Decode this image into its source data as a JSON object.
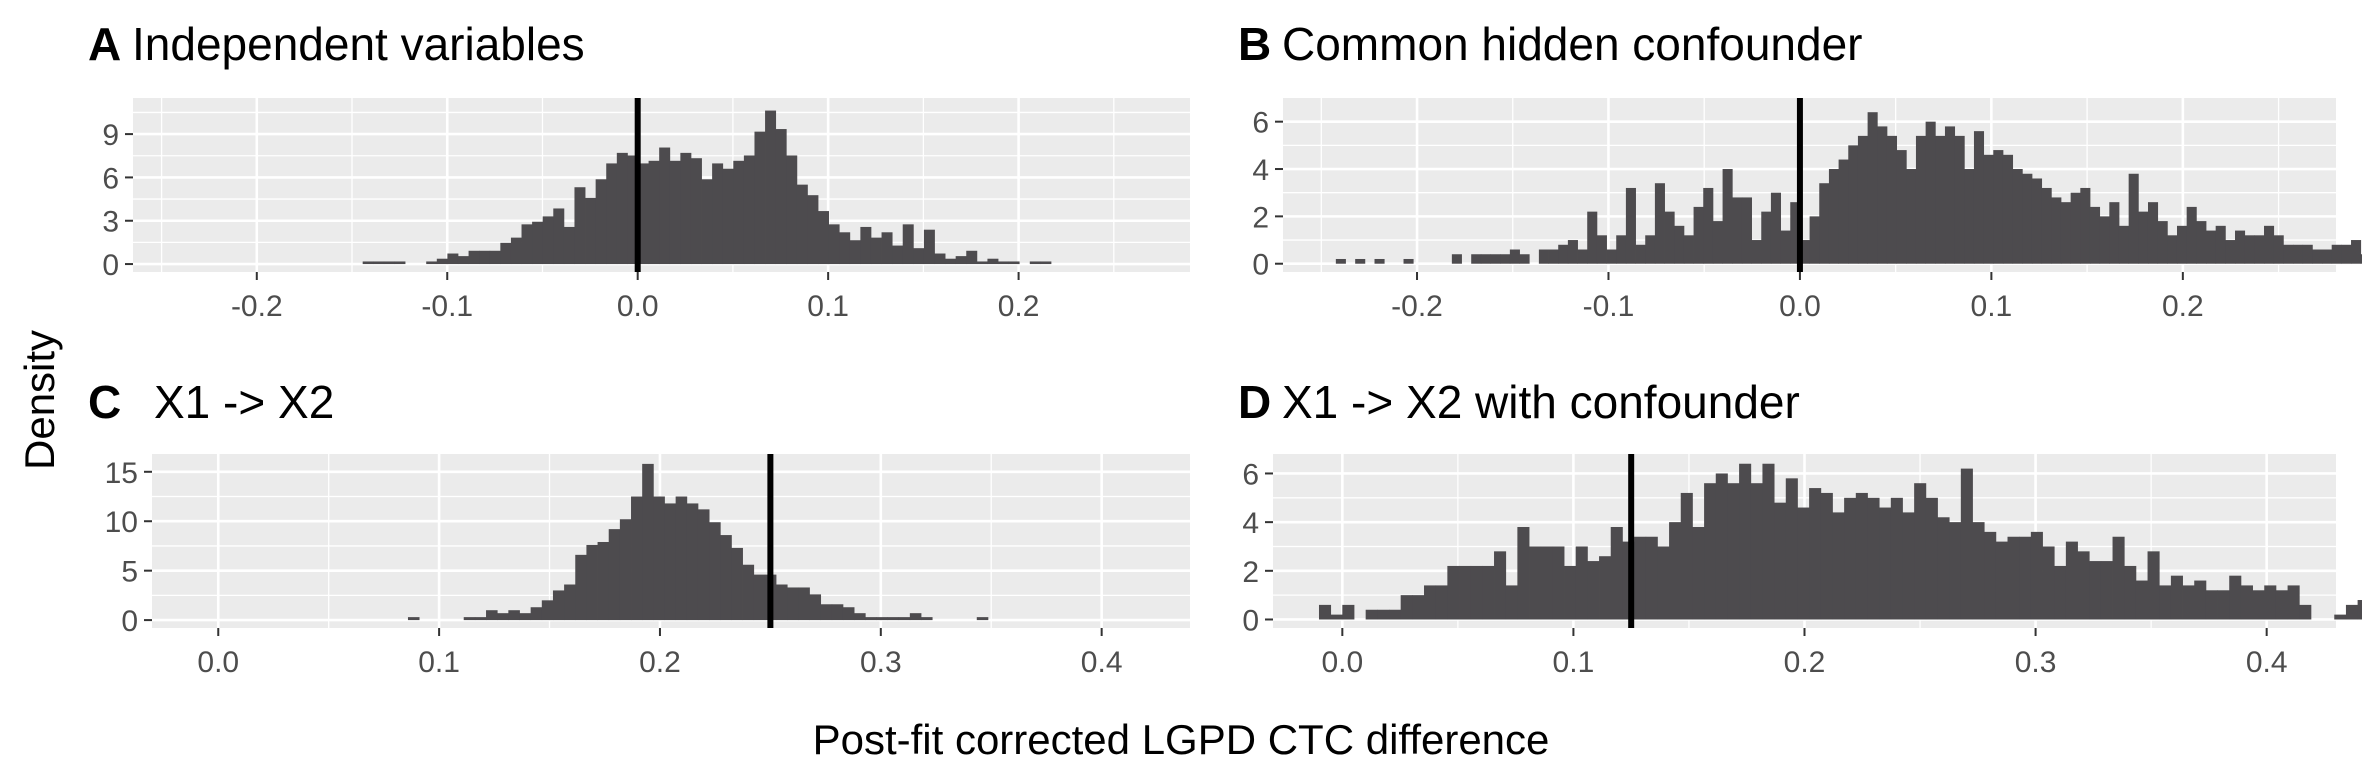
{
  "figure": {
    "ylabel": "Density",
    "xlabel": "Post-fit corrected LGPD CTC difference"
  },
  "chart_data": [
    {
      "type": "bar",
      "panel_letter": "A",
      "title": "Independent variables",
      "xlim": [
        -0.265,
        0.29
      ],
      "ylim": [
        -0.55,
        11.5
      ],
      "x_ticks": [
        -0.2,
        -0.1,
        0.0,
        0.1,
        0.2
      ],
      "x_tick_labels": [
        "-0.2",
        "-0.1",
        "0.0",
        "0.1",
        "0.2"
      ],
      "y_ticks": [
        0,
        3,
        6,
        9
      ],
      "y_tick_labels": [
        "0",
        "3",
        "6",
        "9"
      ],
      "bin_width": 0.00556,
      "bin_start": -0.1444,
      "values": [
        0.18,
        0.18,
        0.18,
        0.18,
        0,
        0,
        0.18,
        0.37,
        0.73,
        0.55,
        0.92,
        0.92,
        0.92,
        1.47,
        1.83,
        2.75,
        2.93,
        3.3,
        3.85,
        2.57,
        5.32,
        4.58,
        5.87,
        6.97,
        7.7,
        7.52,
        6.97,
        7.15,
        8.07,
        7.15,
        7.7,
        7.33,
        5.87,
        6.97,
        6.6,
        7.15,
        7.52,
        9.17,
        10.63,
        9.35,
        7.52,
        5.5,
        4.77,
        3.67,
        2.75,
        2.2,
        1.65,
        2.57,
        1.83,
        2.2,
        1.28,
        2.75,
        1.1,
        2.38,
        0.73,
        0.37,
        0.55,
        0.92,
        0.18,
        0.37,
        0.18,
        0.18,
        0,
        0.18,
        0.18
      ],
      "vline": 0.0,
      "grid": true
    },
    {
      "type": "bar",
      "panel_letter": "B",
      "title": "Common hidden confounder",
      "xlim": [
        -0.27,
        0.28
      ],
      "ylim": [
        -0.35,
        7.0
      ],
      "x_ticks": [
        -0.2,
        -0.1,
        0.0,
        0.1,
        0.2
      ],
      "x_tick_labels": [
        "-0.2",
        "-0.1",
        "0.0",
        "0.1",
        "0.2"
      ],
      "y_ticks": [
        0,
        2,
        4,
        6
      ],
      "y_tick_labels": [
        "0",
        "2",
        "4",
        "6"
      ],
      "bin_width": 0.00505,
      "bin_start": -0.2424,
      "values": [
        0.2,
        0,
        0.2,
        0,
        0.2,
        0,
        0,
        0.2,
        0,
        0,
        0,
        0,
        0.4,
        0,
        0.4,
        0.4,
        0.4,
        0.4,
        0.6,
        0.4,
        0,
        0.6,
        0.6,
        0.8,
        1.0,
        0.6,
        2.2,
        1.2,
        0.6,
        1.2,
        3.2,
        0.8,
        1.2,
        3.4,
        2.2,
        1.6,
        1.2,
        2.4,
        3.2,
        1.8,
        4.0,
        2.8,
        2.8,
        1.0,
        2.2,
        3.0,
        1.4,
        2.6,
        1.0,
        2.0,
        3.4,
        4.0,
        4.4,
        5.0,
        5.4,
        6.4,
        5.8,
        5.4,
        4.8,
        4.0,
        5.4,
        6.0,
        5.4,
        5.8,
        5.4,
        4.0,
        5.6,
        4.6,
        4.8,
        4.6,
        4.0,
        3.8,
        3.6,
        3.2,
        2.8,
        2.6,
        3.0,
        3.2,
        2.4,
        2.0,
        2.6,
        1.6,
        3.8,
        2.2,
        2.6,
        1.8,
        1.2,
        1.6,
        2.4,
        1.8,
        1.4,
        1.6,
        1.0,
        1.4,
        1.2,
        1.2,
        1.6,
        1.2,
        0.8,
        0.8,
        0.8,
        0.6,
        0.6,
        0.8,
        0.8,
        1.0,
        0.4,
        0.2,
        0.2,
        0.2,
        0.2,
        0,
        0,
        0,
        0,
        0.2,
        0,
        0,
        0,
        0,
        0.2,
        0,
        0,
        0,
        0,
        0,
        0.2,
        0.2
      ],
      "vline": 0.0,
      "grid": true
    },
    {
      "type": "bar",
      "panel_letter": "C",
      "title": "X1 -> X2",
      "xlim": [
        -0.03,
        0.44
      ],
      "ylim": [
        -0.8,
        16.8
      ],
      "x_ticks": [
        0.0,
        0.1,
        0.2,
        0.3,
        0.4
      ],
      "x_tick_labels": [
        "0.0",
        "0.1",
        "0.2",
        "0.3",
        "0.4"
      ],
      "y_ticks": [
        0,
        5,
        10,
        15
      ],
      "y_tick_labels": [
        "0",
        "5",
        "10",
        "15"
      ],
      "bin_width": 0.00505,
      "bin_start": 0.0859,
      "values": [
        0.3,
        0,
        0,
        0,
        0,
        0.3,
        0.3,
        1.0,
        0.7,
        1.0,
        0.7,
        1.3,
        2.0,
        3.0,
        3.6,
        6.6,
        7.6,
        7.9,
        9.2,
        10.2,
        12.5,
        15.8,
        12.5,
        11.8,
        12.5,
        11.8,
        11.2,
        9.9,
        8.6,
        7.3,
        5.6,
        4.6,
        4.6,
        3.6,
        3.3,
        3.3,
        2.6,
        1.6,
        1.6,
        1.3,
        0.7,
        0.3,
        0.3,
        0.3,
        0.3,
        0.7,
        0.3,
        0,
        0,
        0,
        0,
        0.3
      ],
      "vline": 0.25,
      "grid": true
    },
    {
      "type": "bar",
      "panel_letter": "D",
      "title": "X1 -> X2 with confounder",
      "xlim": [
        -0.03,
        0.43
      ],
      "ylim": [
        -0.35,
        6.8
      ],
      "x_ticks": [
        0.0,
        0.1,
        0.2,
        0.3,
        0.4
      ],
      "x_tick_labels": [
        "0.0",
        "0.1",
        "0.2",
        "0.3",
        "0.4"
      ],
      "y_ticks": [
        0,
        2,
        4,
        6
      ],
      "y_tick_labels": [
        "0",
        "2",
        "4",
        "6"
      ],
      "bin_width": 0.00505,
      "bin_start": -0.0101,
      "values": [
        0.6,
        0.2,
        0.6,
        0,
        0.4,
        0.4,
        0.4,
        1.0,
        1.0,
        1.4,
        1.4,
        2.2,
        2.2,
        2.2,
        2.2,
        2.8,
        1.4,
        3.8,
        3.0,
        3.0,
        3.0,
        2.2,
        3.0,
        2.4,
        2.6,
        3.8,
        3.2,
        3.4,
        3.4,
        3.0,
        4.0,
        5.2,
        3.8,
        5.6,
        6.0,
        5.6,
        6.4,
        5.6,
        6.4,
        4.8,
        5.8,
        4.6,
        5.4,
        5.2,
        4.4,
        5.0,
        5.2,
        5.0,
        4.6,
        5.0,
        4.4,
        5.6,
        5.0,
        4.2,
        4.0,
        6.2,
        4.0,
        3.6,
        3.2,
        3.4,
        3.4,
        3.6,
        3.0,
        2.2,
        3.2,
        2.8,
        2.4,
        2.4,
        3.4,
        2.2,
        1.6,
        2.8,
        1.4,
        1.8,
        1.4,
        1.6,
        1.2,
        1.2,
        1.8,
        1.4,
        1.2,
        1.4,
        1.2,
        1.4,
        0.6,
        0,
        0,
        0.2,
        0.6,
        0.8,
        1.0,
        1.0,
        0.6,
        0.4,
        0.2,
        0.4,
        0.4,
        0.2,
        0.2,
        0.2,
        0,
        0.4,
        0.2,
        0.2,
        0,
        0.4,
        0,
        0.4,
        0.2,
        0.2,
        0.2,
        0.2,
        0.4,
        0,
        0,
        0,
        0.2
      ],
      "vline": 0.125,
      "grid": true
    }
  ]
}
